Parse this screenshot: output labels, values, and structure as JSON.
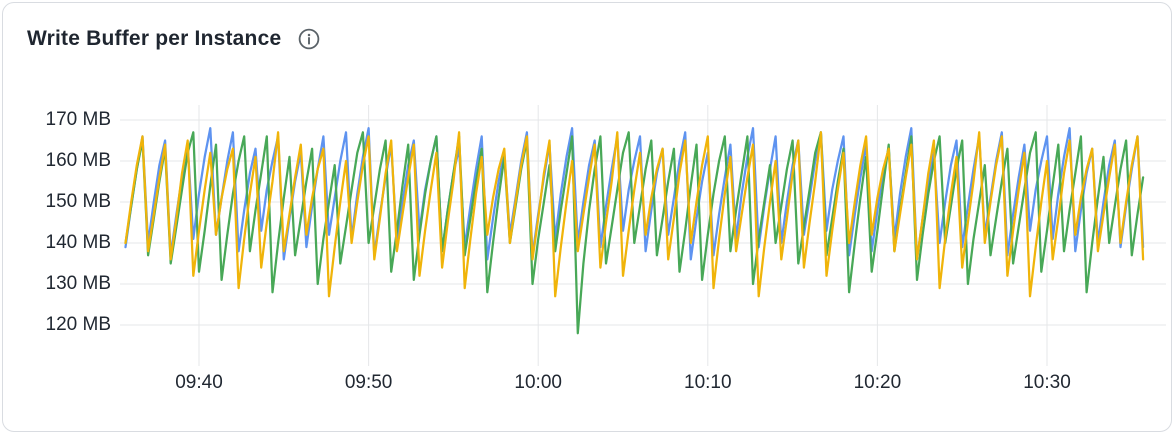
{
  "header": {
    "title": "Write Buffer per Instance"
  },
  "colors": {
    "series_blue": "#5e93f0",
    "series_green": "#48a857",
    "series_yellow": "#f0b40a",
    "grid": "#e5e7e9",
    "axis_text": "#212832",
    "title_text": "#1f2630",
    "info_icon": "#5a6268",
    "card_border": "#d9dce1",
    "card_bg": "#ffffff"
  },
  "chart_data": {
    "type": "line",
    "title": "Write Buffer per Instance",
    "unit": "MB",
    "legend": "none",
    "grid": true,
    "x_start_time": "09:35:40",
    "x_step_seconds": 20,
    "x_ticks": [
      {
        "label": "09:40",
        "offset_seconds": 260
      },
      {
        "label": "09:50",
        "offset_seconds": 860
      },
      {
        "label": "10:00",
        "offset_seconds": 1460
      },
      {
        "label": "10:10",
        "offset_seconds": 2060
      },
      {
        "label": "10:20",
        "offset_seconds": 2660
      },
      {
        "label": "10:30",
        "offset_seconds": 3260
      }
    ],
    "y_ticks": [
      {
        "label": "170 MB",
        "value": 170
      },
      {
        "label": "160 MB",
        "value": 160
      },
      {
        "label": "150 MB",
        "value": 150
      },
      {
        "label": "140 MB",
        "value": 140
      },
      {
        "label": "130 MB",
        "value": 130
      },
      {
        "label": "120 MB",
        "value": 120
      }
    ],
    "ylim": [
      110,
      173
    ],
    "series": [
      {
        "name": "series-1-blue",
        "color": "#5e93f0",
        "values": [
          139,
          149,
          158,
          166,
          140,
          150,
          159,
          165,
          137,
          147,
          156,
          164,
          141,
          152,
          161,
          168,
          142,
          151,
          160,
          167,
          138,
          148,
          157,
          163,
          143,
          153,
          160,
          166,
          136,
          146,
          155,
          162,
          139,
          149,
          158,
          166,
          142,
          151,
          160,
          167,
          141,
          152,
          161,
          168,
          137,
          147,
          156,
          164,
          140,
          150,
          159,
          165,
          143,
          153,
          160,
          166,
          138,
          148,
          157,
          163,
          139,
          149,
          158,
          166,
          136,
          146,
          155,
          162,
          142,
          151,
          160,
          167,
          137,
          147,
          156,
          164,
          141,
          152,
          161,
          168,
          140,
          150,
          159,
          165,
          139,
          149,
          158,
          166,
          143,
          153,
          160,
          166,
          138,
          148,
          157,
          163,
          142,
          151,
          160,
          167,
          136,
          146,
          155,
          162,
          137,
          147,
          156,
          164,
          141,
          152,
          161,
          168,
          139,
          149,
          158,
          166,
          140,
          150,
          159,
          165,
          142,
          151,
          160,
          167,
          143,
          153,
          160,
          166,
          137,
          147,
          156,
          164,
          138,
          148,
          157,
          163,
          141,
          152,
          161,
          168,
          136,
          146,
          155,
          162,
          140,
          150,
          159,
          165,
          139,
          149,
          158,
          166,
          142,
          151,
          160,
          167,
          137,
          147,
          156,
          164,
          143,
          153,
          160,
          166,
          141,
          152,
          161,
          168,
          138,
          148,
          157,
          163,
          140,
          150,
          159,
          165,
          139,
          149,
          158,
          166,
          139
        ]
      },
      {
        "name": "series-2-green",
        "color": "#48a857",
        "values": [
          140,
          149,
          158,
          165,
          137,
          146,
          155,
          163,
          135,
          144,
          153,
          162,
          167,
          133,
          143,
          154,
          164,
          131,
          142,
          152,
          160,
          166,
          138,
          148,
          157,
          166,
          128,
          140,
          151,
          161,
          137,
          146,
          155,
          163,
          130,
          141,
          150,
          159,
          135,
          144,
          153,
          162,
          167,
          140,
          149,
          158,
          165,
          133,
          143,
          154,
          164,
          131,
          142,
          152,
          160,
          166,
          138,
          148,
          157,
          166,
          137,
          146,
          155,
          163,
          128,
          140,
          151,
          161,
          140,
          149,
          158,
          165,
          130,
          141,
          150,
          159,
          138,
          148,
          157,
          166,
          118,
          135,
          148,
          158,
          166,
          135,
          144,
          153,
          162,
          167,
          140,
          149,
          158,
          165,
          137,
          146,
          155,
          163,
          133,
          143,
          154,
          164,
          131,
          142,
          152,
          160,
          166,
          138,
          148,
          157,
          166,
          130,
          141,
          150,
          159,
          140,
          149,
          158,
          165,
          135,
          144,
          153,
          162,
          167,
          137,
          146,
          155,
          163,
          128,
          140,
          151,
          161,
          133,
          143,
          154,
          164,
          138,
          148,
          157,
          166,
          131,
          142,
          152,
          160,
          166,
          140,
          149,
          158,
          165,
          130,
          141,
          150,
          159,
          137,
          146,
          155,
          163,
          135,
          144,
          153,
          162,
          167,
          133,
          143,
          154,
          164,
          138,
          148,
          157,
          166,
          128,
          140,
          151,
          161,
          140,
          149,
          158,
          165,
          137,
          147,
          156
        ]
      },
      {
        "name": "series-3-yellow",
        "color": "#f0b40a",
        "values": [
          140,
          150,
          159,
          166,
          138,
          147,
          156,
          164,
          136,
          146,
          157,
          165,
          132,
          143,
          153,
          162,
          142,
          151,
          158,
          163,
          129,
          141,
          152,
          161,
          134,
          145,
          155,
          167,
          138,
          147,
          156,
          164,
          142,
          151,
          158,
          163,
          127,
          139,
          150,
          160,
          140,
          150,
          159,
          166,
          136,
          146,
          157,
          165,
          138,
          147,
          156,
          164,
          132,
          143,
          153,
          162,
          134,
          145,
          155,
          167,
          129,
          141,
          152,
          161,
          142,
          151,
          158,
          163,
          140,
          150,
          159,
          166,
          136,
          146,
          157,
          165,
          127,
          139,
          150,
          160,
          138,
          147,
          156,
          164,
          134,
          145,
          155,
          167,
          132,
          143,
          153,
          162,
          142,
          151,
          158,
          163,
          136,
          146,
          157,
          165,
          140,
          150,
          159,
          166,
          129,
          141,
          152,
          161,
          138,
          147,
          156,
          164,
          127,
          139,
          150,
          160,
          136,
          146,
          157,
          165,
          134,
          145,
          155,
          167,
          132,
          143,
          153,
          162,
          140,
          150,
          159,
          166,
          142,
          151,
          158,
          163,
          138,
          147,
          156,
          164,
          136,
          146,
          157,
          165,
          129,
          141,
          152,
          161,
          134,
          145,
          155,
          167,
          140,
          150,
          159,
          166,
          132,
          143,
          153,
          162,
          127,
          139,
          150,
          160,
          136,
          146,
          157,
          165,
          142,
          151,
          158,
          163,
          138,
          147,
          156,
          164,
          140,
          150,
          159,
          166,
          136
        ]
      }
    ]
  }
}
